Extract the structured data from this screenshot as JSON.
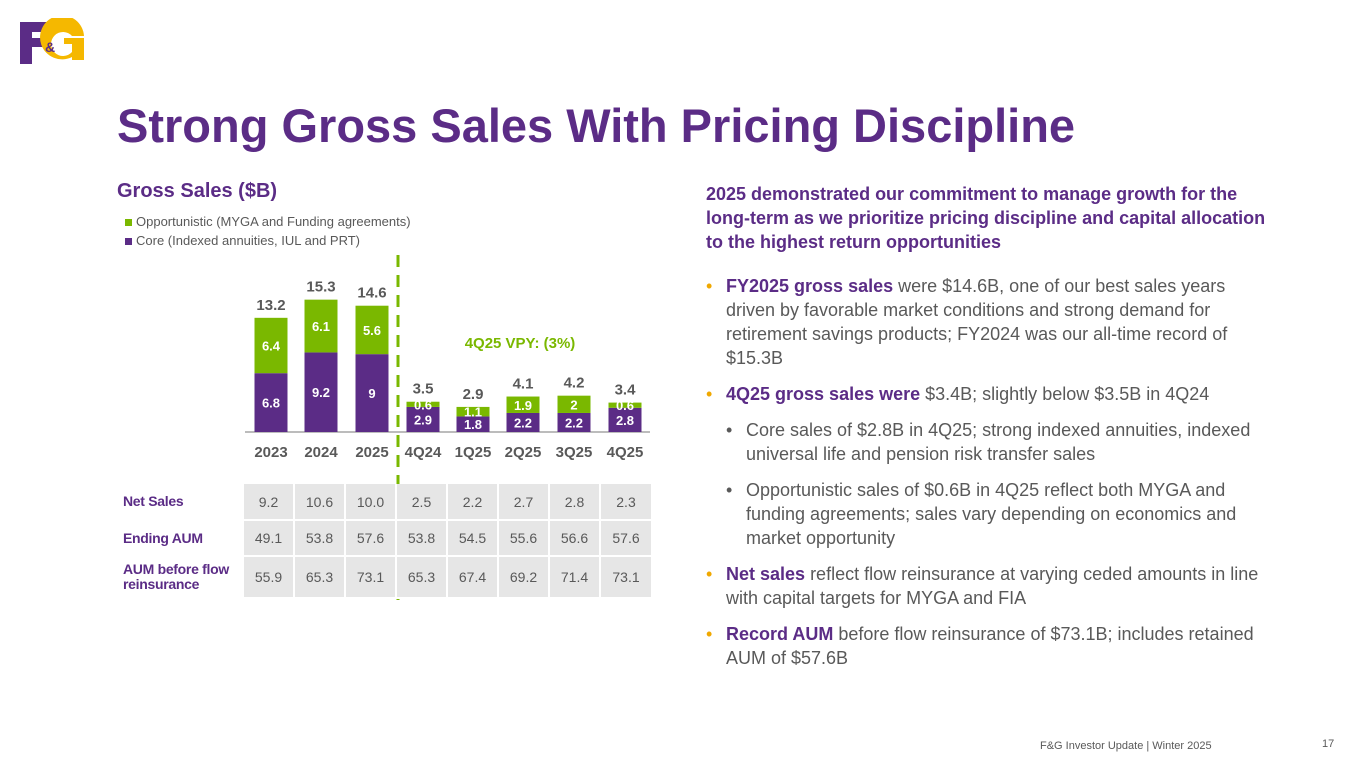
{
  "logo": {
    "text": "F&G"
  },
  "title": "Strong Gross Sales With Pricing Discipline",
  "chart_data": {
    "type": "bar",
    "stacked": true,
    "title": "Gross Sales ($B)",
    "categories": [
      "2023",
      "2024",
      "2025",
      "4Q24",
      "1Q25",
      "2Q25",
      "3Q25",
      "4Q25"
    ],
    "series": [
      {
        "name": "Core (Indexed annuities, IUL and PRT)",
        "color": "#5b2c86",
        "values": [
          6.8,
          9.2,
          9.0,
          2.9,
          1.8,
          2.2,
          2.2,
          2.8
        ]
      },
      {
        "name": "Opportunistic (MYGA and Funding agreements)",
        "color": "#7ab800",
        "values": [
          6.4,
          6.1,
          5.6,
          0.6,
          1.1,
          1.9,
          2.0,
          0.6
        ]
      }
    ],
    "totals": [
      "13.2",
      "15.3",
      "14.6",
      "3.5",
      "2.9",
      "4.1",
      "4.2",
      "3.4"
    ],
    "annotation": "4Q25 VPY: (3%)"
  },
  "table": {
    "rows": [
      {
        "label": "Net Sales",
        "values": [
          "9.2",
          "10.6",
          "10.0",
          "2.5",
          "2.2",
          "2.7",
          "2.8",
          "2.3"
        ]
      },
      {
        "label": "Ending AUM",
        "values": [
          "49.1",
          "53.8",
          "57.6",
          "53.8",
          "54.5",
          "55.6",
          "56.6",
          "57.6"
        ]
      },
      {
        "label": "AUM before flow reinsurance",
        "values": [
          "55.9",
          "65.3",
          "73.1",
          "65.3",
          "67.4",
          "69.2",
          "71.4",
          "73.1"
        ]
      }
    ]
  },
  "right": {
    "lead": "2025 demonstrated our commitment to manage growth for the long-term as we prioritize pricing discipline and capital allocation to the highest return opportunities",
    "b1_bold": "FY2025 gross sales",
    "b1": " were $14.6B, one of our best sales years driven by favorable market conditions and strong demand for retirement savings products; FY2024 was our all-time record of $15.3B",
    "b2_bold": "4Q25 gross sales were",
    "b2": " $3.4B; slightly below $3.5B in 4Q24",
    "s1": "Core sales of $2.8B in 4Q25; strong indexed annuities, indexed universal life and pension risk transfer sales",
    "s2": "Opportunistic sales of $0.6B in 4Q25 reflect both MYGA and funding agreements; sales vary depending on economics and market opportunity",
    "b3_bold": "Net sales",
    "b3": " reflect flow reinsurance at varying ceded amounts in line with capital targets for MYGA and FIA",
    "b4_bold": "Record AUM",
    "b4": " before flow reinsurance of $73.1B; includes retained AUM of $57.6B"
  },
  "footer": "F&G Investor Update |  Winter 2025",
  "page": "17"
}
